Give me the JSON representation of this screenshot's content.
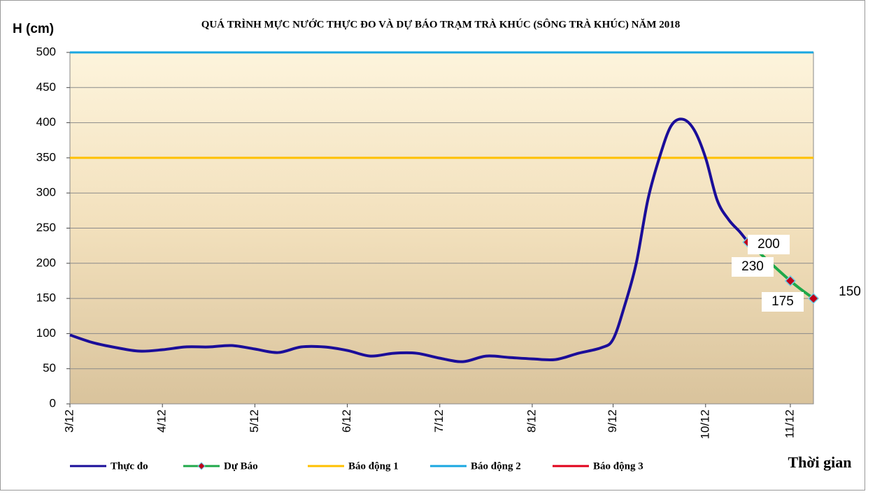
{
  "chart_data": {
    "type": "line",
    "title": "QUÁ TRÌNH MỰC NƯỚC THỰC ĐO VÀ DỰ BÁO TRẠM TRÀ KHÚC (SÔNG TRÀ KHÚC) NĂM 2018",
    "y_label": "H (cm)",
    "x_label": "Thời gian",
    "xlim": [
      0,
      193
    ],
    "ylim": [
      0,
      500
    ],
    "xticks": [
      {
        "value": 0,
        "label": "3/12"
      },
      {
        "value": 24,
        "label": "4/12"
      },
      {
        "value": 48,
        "label": "5/12"
      },
      {
        "value": 72,
        "label": "6/12"
      },
      {
        "value": 96,
        "label": "7/12"
      },
      {
        "value": 120,
        "label": "8/12"
      },
      {
        "value": 141,
        "label": "9/12"
      },
      {
        "value": 165,
        "label": "10/12"
      },
      {
        "value": 187,
        "label": "11/12"
      }
    ],
    "yticks": [
      0,
      50,
      100,
      150,
      200,
      250,
      300,
      350,
      400,
      450,
      500
    ],
    "grid": true,
    "series": [
      {
        "name": "Thực đo",
        "color": "#1a0d99",
        "x": [
          0,
          6,
          12,
          18,
          24,
          30,
          36,
          42,
          48,
          54,
          60,
          66,
          72,
          78,
          84,
          90,
          96,
          102,
          108,
          114,
          120,
          126,
          132,
          138,
          141,
          144,
          147,
          150,
          153,
          156,
          159,
          162,
          165,
          168,
          171,
          174,
          176
        ],
        "values": [
          98,
          87,
          80,
          75,
          77,
          81,
          81,
          83,
          78,
          73,
          81,
          81,
          76,
          68,
          72,
          72,
          65,
          60,
          68,
          66,
          64,
          63,
          72,
          80,
          92,
          140,
          200,
          290,
          350,
          395,
          405,
          390,
          350,
          290,
          262,
          244,
          230
        ]
      },
      {
        "name": "Dự Báo",
        "color": "#1fa84a",
        "marker_color": "#c0001a",
        "x": [
          176,
          187,
          193
        ],
        "values": [
          230,
          175,
          150
        ]
      }
    ],
    "alerts": [
      {
        "name": "Báo động 1",
        "color": "#ffc000",
        "value": 350
      },
      {
        "name": "Báo động 2",
        "color": "#1aa7e0",
        "value": 500
      },
      {
        "name": "Báo động 3",
        "color": "#e0001a",
        "value": null
      }
    ],
    "annotations": [
      "200",
      "230",
      "175",
      "150"
    ]
  }
}
